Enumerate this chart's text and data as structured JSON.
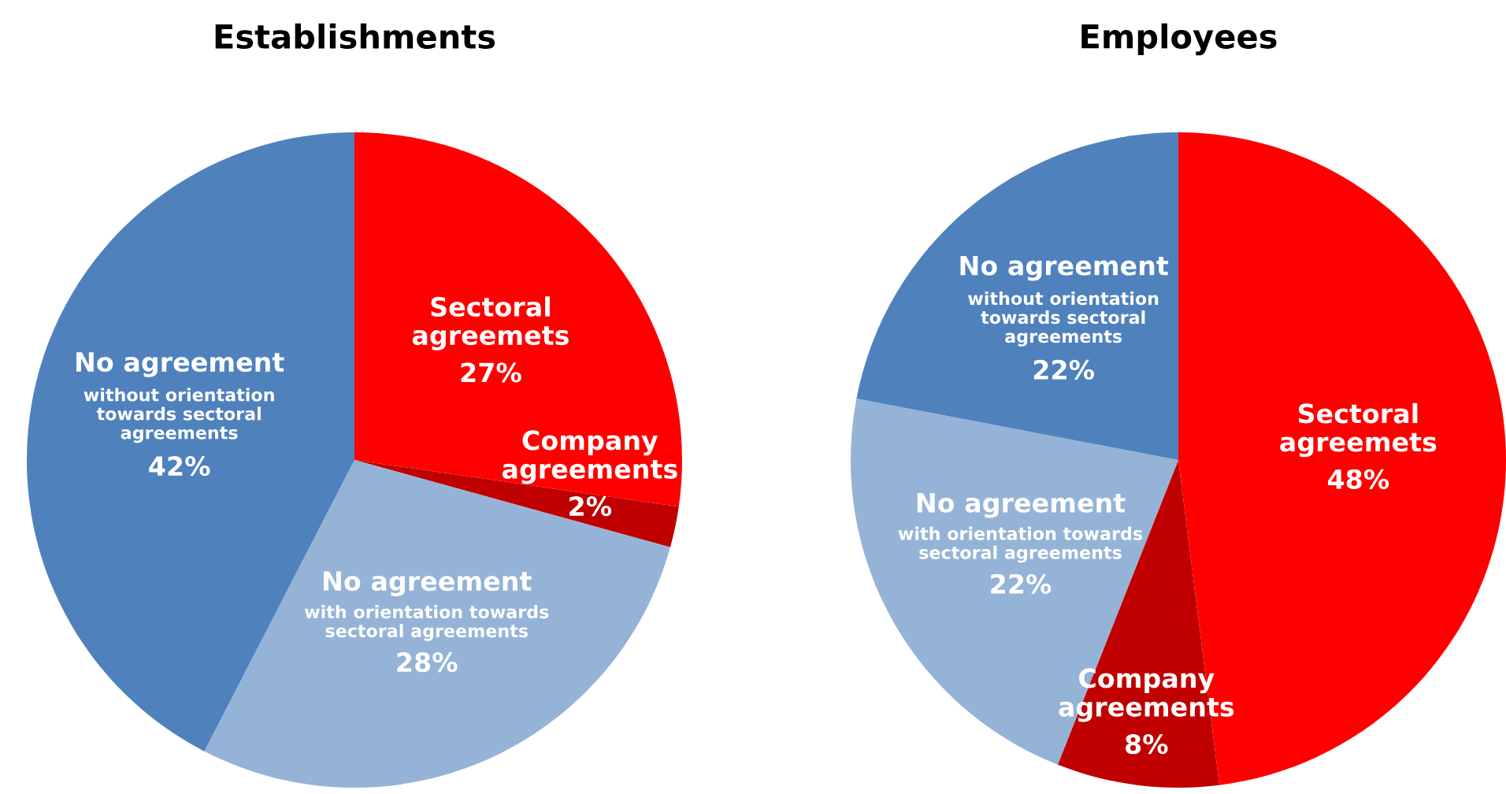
{
  "chart_data": [
    {
      "type": "pie",
      "title": "Establishments",
      "categories": [
        "Sectoral\nagreemets",
        "Company\nagreements",
        "No agreement\nwith orientation towards\nsectoral agreements",
        "No agreement\nwithout orientation\ntowards sectoral\nagreements"
      ],
      "values": [
        27,
        2,
        28,
        42
      ],
      "value_labels": [
        "27%",
        "2%",
        "28%",
        "42%"
      ],
      "colors": [
        "#ff0000",
        "#c00000",
        "#95b3d7",
        "#4f81bd"
      ]
    },
    {
      "type": "pie",
      "title": "Employees",
      "categories": [
        "Sectoral\nagreemets",
        "Company\nagreements",
        "No agreement\nwith orientation towards\nsectoral agreements",
        "No agreement\nwithout orientation\ntowards sectoral\nagreements"
      ],
      "values": [
        48,
        8,
        22,
        22
      ],
      "value_labels": [
        "48%",
        "8%",
        "22%",
        "22%"
      ],
      "colors": [
        "#ff0000",
        "#c00000",
        "#95b3d7",
        "#4f81bd"
      ]
    }
  ]
}
